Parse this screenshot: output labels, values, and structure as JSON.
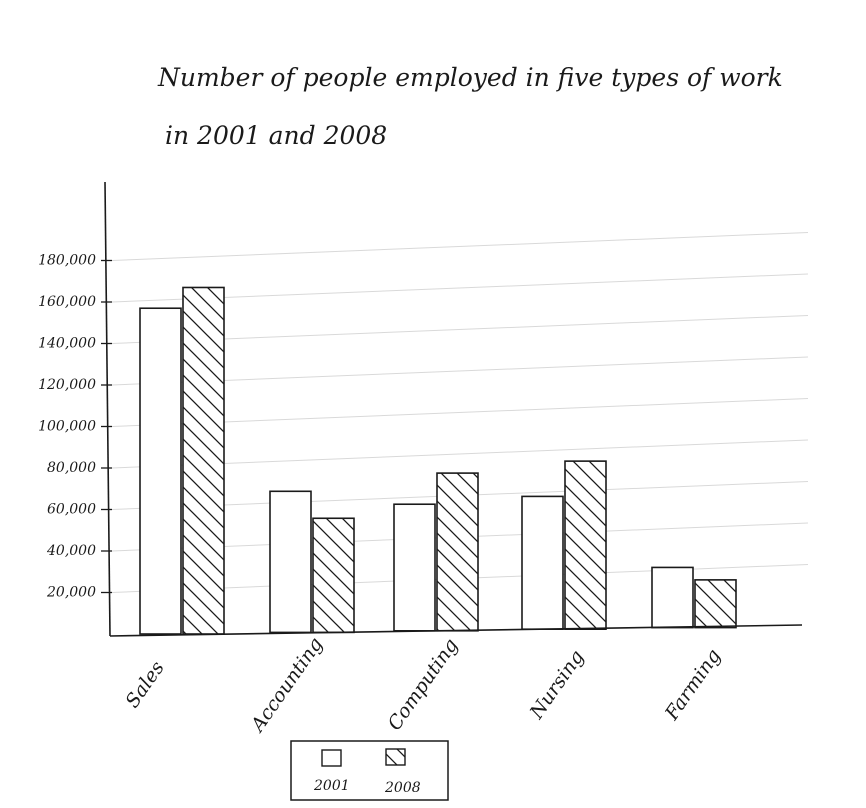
{
  "chart_data": {
    "type": "bar",
    "title_line1": "Number of people employed in five types of work",
    "title_line2": "in 2001 and 2008",
    "categories": [
      "Sales",
      "Accounting",
      "Computing",
      "Nursing",
      "Farming"
    ],
    "series": [
      {
        "name": "2001",
        "values": [
          157000,
          68000,
          61000,
          64000,
          29000
        ],
        "pattern": "plain"
      },
      {
        "name": "2008",
        "values": [
          167000,
          55000,
          76000,
          81000,
          23000
        ],
        "pattern": "hatched"
      }
    ],
    "y_ticks": [
      20000,
      40000,
      60000,
      80000,
      100000,
      120000,
      140000,
      160000,
      180000
    ],
    "y_tick_labels": [
      "20,000",
      "40,000",
      "60,000",
      "80,000",
      "100,000",
      "120,000",
      "140,000",
      "160,000",
      "180,000"
    ],
    "ylim": [
      0,
      200000
    ],
    "xlabel": "",
    "ylabel": "",
    "grid": true,
    "legend_position": "bottom-center",
    "colors": {
      "ink": "#1a1a1a",
      "grid": "#d9d9d9",
      "bar_fill": "#ffffff"
    }
  }
}
